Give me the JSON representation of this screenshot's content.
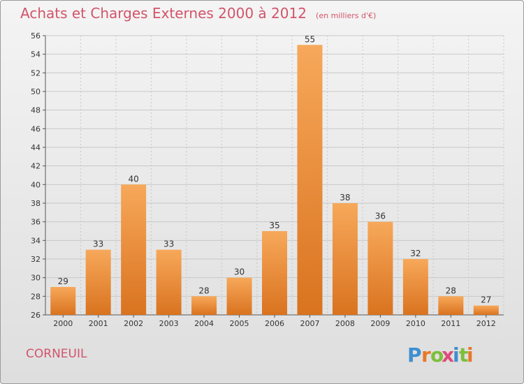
{
  "title": "Achats et Charges Externes 2000 à 2012",
  "unit_note": "(en milliers d'€)",
  "commune": "CORNEUIL",
  "logo": {
    "text": "Proxiti",
    "letters": [
      "P",
      "r",
      "o",
      "x",
      "i",
      "t",
      "i"
    ],
    "colors": [
      "#3d8fd1",
      "#e8782a",
      "#7dbf3a",
      "#e04a7a",
      "#3d8fd1",
      "#7dbf3a",
      "#e8782a"
    ]
  },
  "colors": {
    "bar_top": "#f7a85a",
    "bar_bottom": "#d9731f",
    "grid": "#c8c8c8",
    "text": "#333333",
    "title": "#d2546a"
  },
  "chart_data": {
    "type": "bar",
    "categories": [
      "2000",
      "2001",
      "2002",
      "2003",
      "2004",
      "2005",
      "2006",
      "2007",
      "2008",
      "2009",
      "2010",
      "2011",
      "2012"
    ],
    "values": [
      29,
      33,
      40,
      33,
      28,
      30,
      35,
      55,
      38,
      36,
      32,
      28,
      27
    ],
    "ylim": [
      26,
      56
    ],
    "yticks": [
      26,
      28,
      30,
      32,
      34,
      36,
      38,
      40,
      42,
      44,
      46,
      48,
      50,
      52,
      54,
      56
    ],
    "grid": true,
    "title": "Achats et Charges Externes 2000 à 2012",
    "xlabel": "",
    "ylabel": ""
  }
}
